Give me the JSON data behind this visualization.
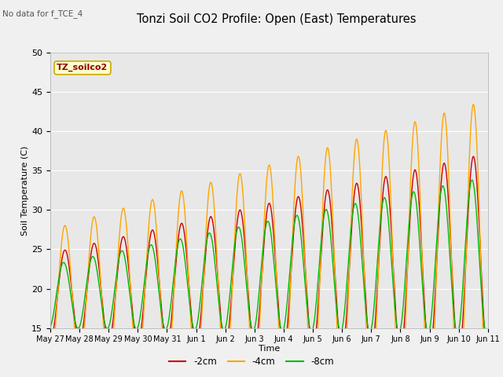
{
  "title": "Tonzi Soil CO2 Profile: Open (East) Temperatures",
  "no_data_label": "No data for f_TCE_4",
  "site_label": "TZ_soilco2",
  "ylabel": "Soil Temperature (C)",
  "xlabel": "Time",
  "ylim": [
    15,
    50
  ],
  "color_2cm": "#cc0000",
  "color_4cm": "#ffa500",
  "color_8cm": "#00bb00",
  "legend_labels": [
    "-2cm",
    "-4cm",
    "-8cm"
  ],
  "fig_bg_color": "#f0f0f0",
  "plot_bg_color": "#e8e8e8",
  "tick_labels": [
    "May 27",
    "May 28",
    "May 29",
    "May 30",
    "May 31",
    "Jun 1",
    "Jun 2",
    "Jun 3",
    "Jun 4",
    "Jun 5",
    "Jun 6",
    "Jun 7",
    "Jun 8",
    "Jun 9",
    "Jun 10",
    "Jun 11"
  ],
  "n_days": 15,
  "samples_per_day": 48
}
